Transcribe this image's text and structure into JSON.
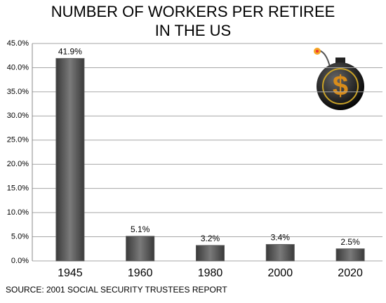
{
  "chart_data": {
    "type": "bar",
    "title": [
      "NUMBER OF WORKERS PER RETIREE",
      "IN THE US"
    ],
    "categories": [
      "1945",
      "1960",
      "1980",
      "2000",
      "2020"
    ],
    "values": [
      41.9,
      5.1,
      3.2,
      3.4,
      2.5
    ],
    "value_labels": [
      "41.9%",
      "5.1%",
      "3.2%",
      "3.4%",
      "2.5%"
    ],
    "color": "#595959",
    "ylim": [
      0,
      45
    ],
    "yticks": [
      {
        "value": 0,
        "label": "0.0%"
      },
      {
        "value": 5,
        "label": "5.0%"
      },
      {
        "value": 10,
        "label": "10.0%"
      },
      {
        "value": 15,
        "label": "15.0%"
      },
      {
        "value": 20,
        "label": "20.0%"
      },
      {
        "value": 25,
        "label": "25.0%"
      },
      {
        "value": 30,
        "label": "30.0%"
      },
      {
        "value": 35,
        "label": "35.0%"
      },
      {
        "value": 40,
        "label": "40.0%"
      },
      {
        "value": 45,
        "label": "45.0%"
      }
    ],
    "grid": true,
    "source": "SOURCE: 2001 SOCIAL SECURITY TRUSTEES REPORT"
  }
}
